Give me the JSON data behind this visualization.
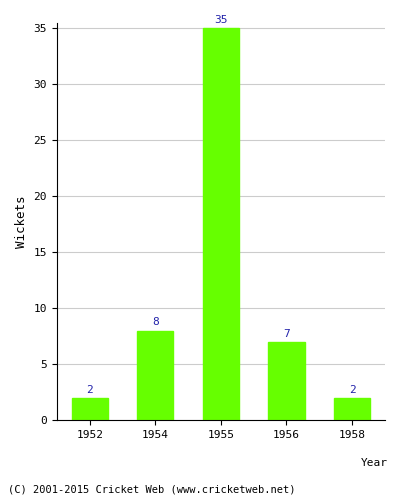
{
  "categories": [
    "1952",
    "1954",
    "1955",
    "1956",
    "1958"
  ],
  "values": [
    2,
    8,
    35,
    7,
    2
  ],
  "bar_color": "#66ff00",
  "label_color": "#2222aa",
  "ylabel": "Wickets",
  "xlabel": "Year",
  "ylim": [
    0,
    35
  ],
  "yticks": [
    0,
    5,
    10,
    15,
    20,
    25,
    30,
    35
  ],
  "background_color": "#ffffff",
  "grid_color": "#cccccc",
  "footer_text": "(C) 2001-2015 Cricket Web (www.cricketweb.net)",
  "bar_width": 0.55,
  "figsize": [
    4.0,
    5.0
  ],
  "dpi": 100
}
